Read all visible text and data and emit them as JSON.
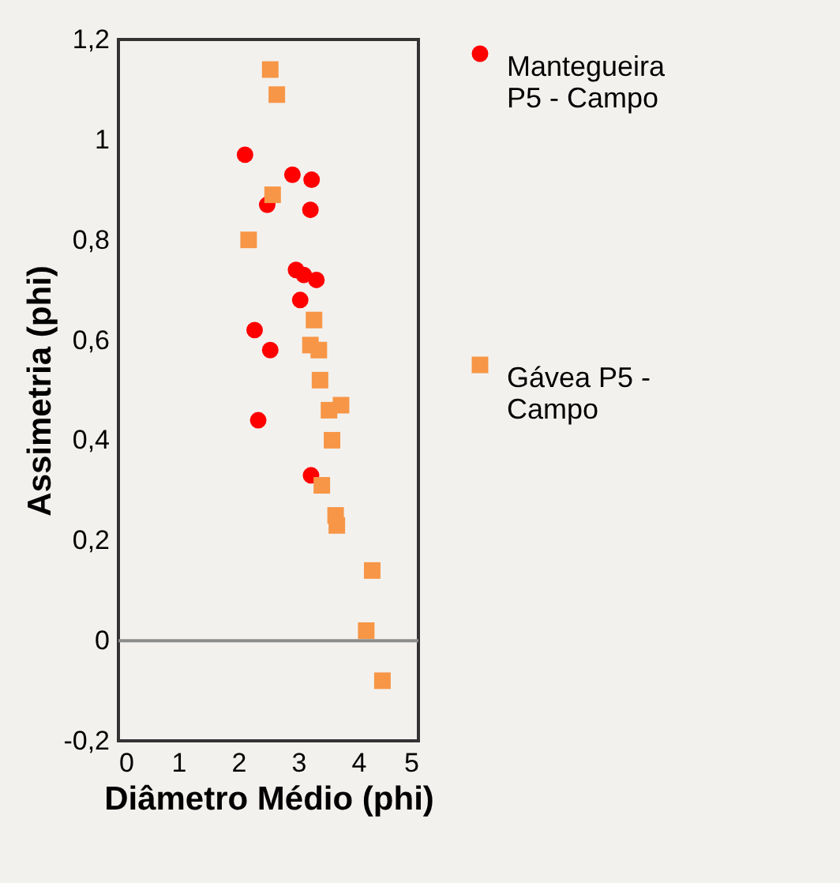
{
  "chart_data": {
    "type": "scatter",
    "xlabel": "Diâmetro Médio (phi)",
    "ylabel": "Assimetria (phi)",
    "xlim": [
      0,
      5
    ],
    "xticks": [
      0,
      1,
      2,
      3,
      4,
      5
    ],
    "ylim": [
      -0.2,
      1.2
    ],
    "yticks": [
      {
        "value": -0.2,
        "label": "-0,2"
      },
      0,
      {
        "value": 0.2,
        "label": "0,2"
      },
      {
        "value": 0.4,
        "label": "0,4"
      },
      {
        "value": 0.6,
        "label": "0,6"
      },
      {
        "value": 0.8,
        "label": "0,8"
      },
      1,
      {
        "value": 1.2,
        "label": "1,2"
      }
    ],
    "grid": false,
    "legend": "right",
    "ref_lines": [
      {
        "axis": "y",
        "value": 0,
        "color": "#8c8c8c"
      }
    ],
    "series": [
      {
        "name": "Mantegueira P5 - Campo",
        "color": "#ff0000",
        "marker": "circle",
        "x": [
          2.11,
          2.9,
          3.22,
          2.48,
          3.2,
          2.96,
          3.09,
          3.3,
          3.03,
          2.27,
          2.53,
          2.33,
          3.21
        ],
        "values": [
          0.97,
          0.93,
          0.92,
          0.87,
          0.86,
          0.74,
          0.73,
          0.72,
          0.68,
          0.62,
          0.58,
          0.44,
          0.33
        ]
      },
      {
        "name": "Gávea P5 - Campo",
        "color": "#f79646",
        "marker": "square",
        "x": [
          2.53,
          2.64,
          2.57,
          2.17,
          3.26,
          3.2,
          3.34,
          3.36,
          3.71,
          3.51,
          3.56,
          3.39,
          3.62,
          3.64,
          4.23,
          4.13,
          4.4
        ],
        "values": [
          1.14,
          1.09,
          0.89,
          0.8,
          0.64,
          0.59,
          0.58,
          0.52,
          0.47,
          0.46,
          0.4,
          0.31,
          0.25,
          0.23,
          0.14,
          0.02,
          -0.08
        ]
      }
    ]
  }
}
